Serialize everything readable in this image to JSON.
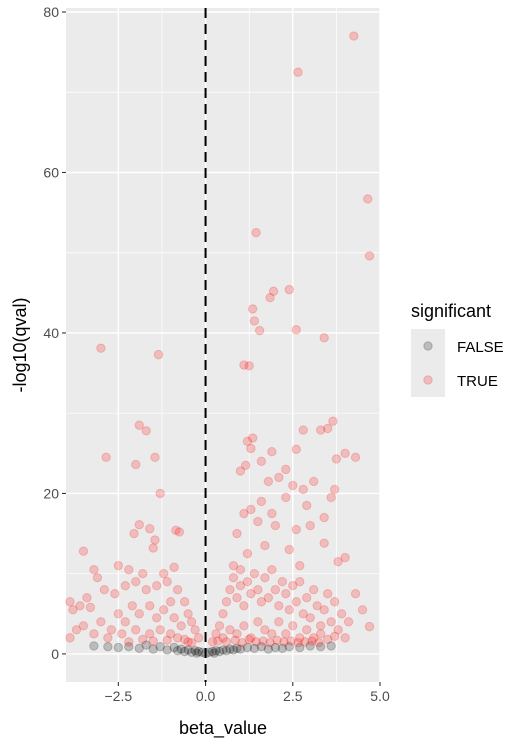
{
  "chart_data": {
    "type": "scatter",
    "title": "",
    "xlabel": "beta_value",
    "ylabel": "-log10(qval)",
    "xlim": [
      -4.0,
      5.0
    ],
    "ylim": [
      -3.5,
      80.5
    ],
    "x_ticks": [
      -2.5,
      0.0,
      2.5,
      5.0
    ],
    "x_tick_labels": [
      "−2.5",
      "0.0",
      "2.5",
      "5.0"
    ],
    "y_ticks": [
      0,
      20,
      40,
      60,
      80
    ],
    "y_tick_labels": [
      "0",
      "20",
      "40",
      "60",
      "80"
    ],
    "grid": true,
    "reference_line": {
      "x": 0.0,
      "style": "dashed"
    },
    "legend": {
      "title": "significant",
      "position": "right",
      "entries": [
        {
          "label": "FALSE",
          "color": "#000000"
        },
        {
          "label": "TRUE",
          "color": "#ff0000"
        }
      ]
    },
    "point_alpha": 0.2,
    "series": [
      {
        "name": "FALSE",
        "color": "#000000",
        "points": [
          [
            -3.2,
            1.0
          ],
          [
            -2.8,
            0.9
          ],
          [
            -2.5,
            0.8
          ],
          [
            -2.2,
            0.9
          ],
          [
            -1.9,
            0.7
          ],
          [
            -1.7,
            1.1
          ],
          [
            -1.5,
            0.6
          ],
          [
            -1.3,
            0.9
          ],
          [
            -1.1,
            0.5
          ],
          [
            -0.9,
            0.8
          ],
          [
            -0.8,
            0.4
          ],
          [
            -0.7,
            0.6
          ],
          [
            -0.6,
            0.3
          ],
          [
            -0.5,
            0.5
          ],
          [
            -0.4,
            0.2
          ],
          [
            -0.3,
            0.4
          ],
          [
            -0.2,
            0.3
          ],
          [
            -0.1,
            0.2
          ],
          [
            0.1,
            0.2
          ],
          [
            0.2,
            0.3
          ],
          [
            0.3,
            0.4
          ],
          [
            0.4,
            0.3
          ],
          [
            0.5,
            0.5
          ],
          [
            0.6,
            0.4
          ],
          [
            0.7,
            0.6
          ],
          [
            0.8,
            0.5
          ],
          [
            0.9,
            0.7
          ],
          [
            1.0,
            0.6
          ],
          [
            1.2,
            0.8
          ],
          [
            1.4,
            0.7
          ],
          [
            1.6,
            0.9
          ],
          [
            1.8,
            0.6
          ],
          [
            2.0,
            0.8
          ],
          [
            2.2,
            0.7
          ],
          [
            2.4,
            0.9
          ],
          [
            2.7,
            0.8
          ],
          [
            3.0,
            1.0
          ],
          [
            3.3,
            0.9
          ],
          [
            3.6,
            1.0
          ],
          [
            -0.25,
            0.1
          ],
          [
            0.25,
            0.1
          ],
          [
            0.0,
            0.05
          ]
        ]
      },
      {
        "name": "TRUE",
        "color": "#ff0000",
        "points": [
          [
            4.25,
            77.0
          ],
          [
            2.65,
            72.5
          ],
          [
            4.65,
            56.7
          ],
          [
            4.7,
            49.6
          ],
          [
            1.45,
            52.5
          ],
          [
            2.4,
            45.4
          ],
          [
            1.95,
            45.2
          ],
          [
            1.85,
            44.4
          ],
          [
            1.35,
            43.0
          ],
          [
            1.4,
            41.5
          ],
          [
            1.55,
            40.3
          ],
          [
            2.6,
            40.4
          ],
          [
            3.4,
            39.4
          ],
          [
            -3.0,
            38.1
          ],
          [
            -1.35,
            37.3
          ],
          [
            1.1,
            36.0
          ],
          [
            1.25,
            35.9
          ],
          [
            3.65,
            29.0
          ],
          [
            3.5,
            28.1
          ],
          [
            3.3,
            27.9
          ],
          [
            2.8,
            27.9
          ],
          [
            -1.9,
            28.5
          ],
          [
            -1.7,
            27.8
          ],
          [
            1.2,
            26.5
          ],
          [
            1.35,
            26.9
          ],
          [
            1.3,
            25.6
          ],
          [
            1.9,
            25.2
          ],
          [
            1.6,
            24.0
          ],
          [
            2.3,
            23.0
          ],
          [
            2.6,
            25.5
          ],
          [
            -2.85,
            24.5
          ],
          [
            -1.45,
            24.5
          ],
          [
            -2.0,
            23.6
          ],
          [
            4.0,
            25.0
          ],
          [
            4.3,
            24.5
          ],
          [
            3.75,
            24.3
          ],
          [
            1.15,
            23.5
          ],
          [
            1.0,
            22.8
          ],
          [
            2.1,
            22.0
          ],
          [
            1.8,
            21.5
          ],
          [
            2.5,
            21.0
          ],
          [
            3.1,
            21.5
          ],
          [
            2.8,
            20.5
          ],
          [
            3.7,
            20.5
          ],
          [
            3.6,
            19.5
          ],
          [
            2.3,
            19.5
          ],
          [
            1.6,
            19.0
          ],
          [
            2.9,
            18.5
          ],
          [
            -1.3,
            20.0
          ],
          [
            1.3,
            18.0
          ],
          [
            1.9,
            17.5
          ],
          [
            1.1,
            17.5
          ],
          [
            1.5,
            16.5
          ],
          [
            0.9,
            15.0
          ],
          [
            2.0,
            16.0
          ],
          [
            2.6,
            15.5
          ],
          [
            3.0,
            16.0
          ],
          [
            3.4,
            17.0
          ],
          [
            -1.9,
            16.1
          ],
          [
            -1.6,
            15.6
          ],
          [
            -0.85,
            15.4
          ],
          [
            -0.75,
            15.2
          ],
          [
            -2.05,
            15.0
          ],
          [
            -1.45,
            14.2
          ],
          [
            -1.5,
            13.2
          ],
          [
            -3.5,
            12.8
          ],
          [
            1.7,
            13.5
          ],
          [
            2.4,
            13.0
          ],
          [
            3.4,
            13.8
          ],
          [
            4.0,
            12.0
          ],
          [
            3.8,
            11.5
          ],
          [
            1.2,
            12.5
          ],
          [
            0.8,
            11.0
          ],
          [
            1.0,
            10.5
          ],
          [
            2.7,
            11.0
          ],
          [
            -2.5,
            11.0
          ],
          [
            -2.2,
            10.5
          ],
          [
            -1.8,
            10.0
          ],
          [
            -1.2,
            10.0
          ],
          [
            -0.9,
            10.8
          ],
          [
            -3.2,
            10.5
          ],
          [
            -3.1,
            9.5
          ],
          [
            -3.9,
            6.5
          ],
          [
            -3.8,
            5.5
          ],
          [
            -3.6,
            6.0
          ],
          [
            -3.4,
            7.0
          ],
          [
            -3.3,
            5.8
          ],
          [
            -2.9,
            8.0
          ],
          [
            -2.6,
            7.5
          ],
          [
            -2.3,
            8.5
          ],
          [
            -2.0,
            9.0
          ],
          [
            -1.7,
            8.0
          ],
          [
            -1.4,
            8.5
          ],
          [
            -1.1,
            9.0
          ],
          [
            -0.8,
            8.0
          ],
          [
            -0.6,
            6.5
          ],
          [
            -0.5,
            5.0
          ],
          [
            -0.4,
            4.0
          ],
          [
            -0.3,
            3.0
          ],
          [
            -0.2,
            2.0
          ],
          [
            -3.9,
            2.0
          ],
          [
            -3.7,
            3.0
          ],
          [
            -3.5,
            3.5
          ],
          [
            -3.2,
            2.5
          ],
          [
            -3.0,
            4.0
          ],
          [
            -2.7,
            3.0
          ],
          [
            -2.5,
            5.0
          ],
          [
            -2.3,
            4.0
          ],
          [
            -2.1,
            6.0
          ],
          [
            -1.9,
            5.0
          ],
          [
            -1.6,
            6.0
          ],
          [
            -1.4,
            4.5
          ],
          [
            -1.2,
            5.5
          ],
          [
            -1.0,
            6.5
          ],
          [
            -0.9,
            4.5
          ],
          [
            -0.7,
            3.5
          ],
          [
            -2.8,
            2.0
          ],
          [
            -2.4,
            2.5
          ],
          [
            -2.0,
            3.0
          ],
          [
            -1.6,
            2.5
          ],
          [
            -1.3,
            3.0
          ],
          [
            -1.0,
            2.5
          ],
          [
            -0.8,
            2.0
          ],
          [
            -0.6,
            1.8
          ],
          [
            -0.5,
            1.5
          ],
          [
            -1.8,
            1.8
          ],
          [
            -2.2,
            1.5
          ],
          [
            -1.5,
            1.6
          ],
          [
            -1.1,
            1.7
          ],
          [
            -0.4,
            1.4
          ],
          [
            0.2,
            1.5
          ],
          [
            0.3,
            2.5
          ],
          [
            0.4,
            3.5
          ],
          [
            0.5,
            5.0
          ],
          [
            0.6,
            6.5
          ],
          [
            0.7,
            8.0
          ],
          [
            0.8,
            9.5
          ],
          [
            0.9,
            7.0
          ],
          [
            1.0,
            8.5
          ],
          [
            1.1,
            6.0
          ],
          [
            1.2,
            9.0
          ],
          [
            1.3,
            7.5
          ],
          [
            1.4,
            10.0
          ],
          [
            1.5,
            8.0
          ],
          [
            1.6,
            6.5
          ],
          [
            1.7,
            9.5
          ],
          [
            1.8,
            7.0
          ],
          [
            1.9,
            10.5
          ],
          [
            2.0,
            8.0
          ],
          [
            2.1,
            6.0
          ],
          [
            2.2,
            9.0
          ],
          [
            2.3,
            7.5
          ],
          [
            2.4,
            5.5
          ],
          [
            2.5,
            8.5
          ],
          [
            2.6,
            6.5
          ],
          [
            2.7,
            9.0
          ],
          [
            2.8,
            5.0
          ],
          [
            2.9,
            7.0
          ],
          [
            3.0,
            4.5
          ],
          [
            3.1,
            8.0
          ],
          [
            3.2,
            6.0
          ],
          [
            3.3,
            3.5
          ],
          [
            3.4,
            5.5
          ],
          [
            3.5,
            7.5
          ],
          [
            3.6,
            4.0
          ],
          [
            3.7,
            6.5
          ],
          [
            3.8,
            3.0
          ],
          [
            3.9,
            5.0
          ],
          [
            4.0,
            2.0
          ],
          [
            4.1,
            4.0
          ],
          [
            4.7,
            3.4
          ],
          [
            4.5,
            5.5
          ],
          [
            4.3,
            7.5
          ],
          [
            0.5,
            2.0
          ],
          [
            0.7,
            3.0
          ],
          [
            0.9,
            2.5
          ],
          [
            1.1,
            3.5
          ],
          [
            1.3,
            2.0
          ],
          [
            1.5,
            4.0
          ],
          [
            1.7,
            3.0
          ],
          [
            1.9,
            2.5
          ],
          [
            2.1,
            4.0
          ],
          [
            2.3,
            2.5
          ],
          [
            2.5,
            3.5
          ],
          [
            2.7,
            2.0
          ],
          [
            2.9,
            3.0
          ],
          [
            3.1,
            2.0
          ],
          [
            3.3,
            2.5
          ],
          [
            3.5,
            1.8
          ],
          [
            3.7,
            2.2
          ],
          [
            0.35,
            1.6
          ],
          [
            0.6,
            1.5
          ],
          [
            0.85,
            1.7
          ],
          [
            1.05,
            1.4
          ],
          [
            1.25,
            1.8
          ],
          [
            1.45,
            1.5
          ],
          [
            1.65,
            1.6
          ],
          [
            1.85,
            1.4
          ],
          [
            2.05,
            1.7
          ],
          [
            2.25,
            1.5
          ],
          [
            2.45,
            1.6
          ],
          [
            2.65,
            1.4
          ],
          [
            2.85,
            1.5
          ],
          [
            3.05,
            1.6
          ],
          [
            3.25,
            1.4
          ]
        ]
      }
    ]
  }
}
